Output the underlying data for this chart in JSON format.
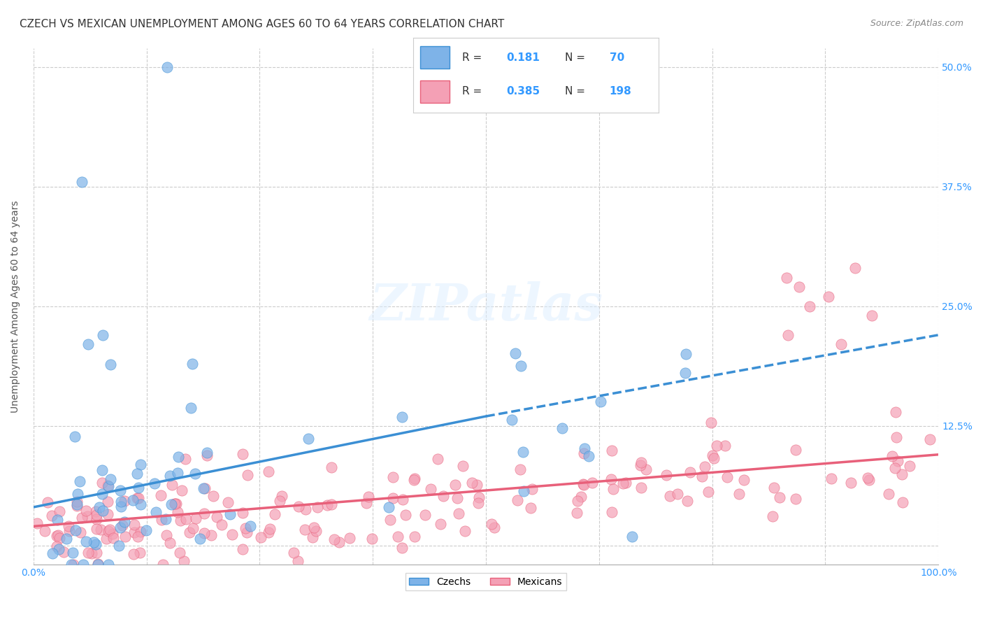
{
  "title": "CZECH VS MEXICAN UNEMPLOYMENT AMONG AGES 60 TO 64 YEARS CORRELATION CHART",
  "source": "Source: ZipAtlas.com",
  "ylabel": "Unemployment Among Ages 60 to 64 years",
  "xlabel": "",
  "xlim": [
    0,
    1
  ],
  "ylim": [
    -0.02,
    0.52
  ],
  "xticks": [
    0.0,
    0.125,
    0.25,
    0.375,
    0.5,
    0.625,
    0.75,
    0.875,
    1.0
  ],
  "xticklabels": [
    "0.0%",
    "",
    "",
    "",
    "",
    "",
    "",
    "",
    "100.0%"
  ],
  "ytick_positions": [
    0.0,
    0.125,
    0.25,
    0.375,
    0.5
  ],
  "ytick_labels": [
    "",
    "12.5%",
    "25.0%",
    "37.5%",
    "50.0%"
  ],
  "czech_color": "#7EB3E8",
  "mexican_color": "#F4A0B5",
  "czech_R": 0.181,
  "czech_N": 70,
  "mexican_R": 0.385,
  "mexican_N": 198,
  "czech_line_color": "#3B8FD4",
  "mexican_line_color": "#E8607A",
  "czech_line_x": [
    0.0,
    0.5
  ],
  "czech_line_y": [
    0.04,
    0.135
  ],
  "mexican_line_x": [
    0.0,
    1.0
  ],
  "mexican_line_y": [
    0.02,
    0.095
  ],
  "czech_dashed_line_x": [
    0.5,
    1.0
  ],
  "czech_dashed_line_y": [
    0.135,
    0.22
  ],
  "watermark": "ZIPatlas",
  "background_color": "#ffffff",
  "grid_color": "#cccccc",
  "title_fontsize": 11,
  "axis_label_fontsize": 10,
  "tick_fontsize": 10
}
